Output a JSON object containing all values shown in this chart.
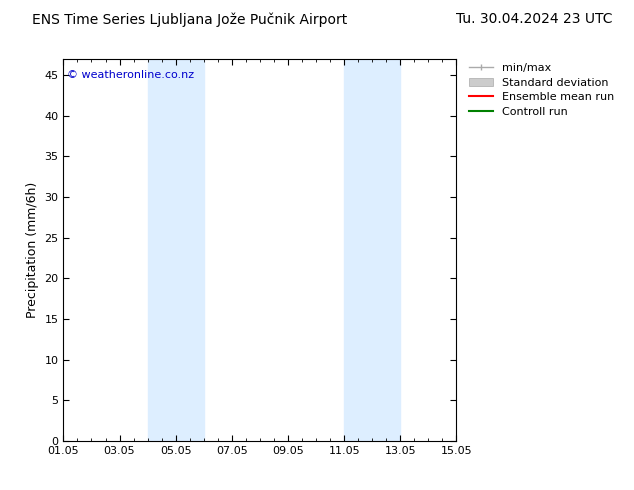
{
  "title_left": "ENS Time Series Ljubljana Jože Pučnik Airport",
  "title_right": "Tu. 30.04.2024 23 UTC",
  "xlabel": "",
  "ylabel": "Precipitation (mm/6h)",
  "watermark": "© weatheronline.co.nz",
  "xtick_labels": [
    "01.05",
    "03.05",
    "05.05",
    "07.05",
    "09.05",
    "11.05",
    "13.05",
    "15.05"
  ],
  "xtick_positions": [
    0,
    2,
    4,
    6,
    8,
    10,
    12,
    14
  ],
  "ylim": [
    0,
    47
  ],
  "ytick_positions": [
    0,
    5,
    10,
    15,
    20,
    25,
    30,
    35,
    40,
    45
  ],
  "ytick_labels": [
    "0",
    "5",
    "10",
    "15",
    "20",
    "25",
    "30",
    "35",
    "40",
    "45"
  ],
  "shaded_bands": [
    {
      "x_start": 3.0,
      "x_end": 4.0,
      "color": "#ddeeff"
    },
    {
      "x_start": 4.0,
      "x_end": 5.0,
      "color": "#ddeeff"
    },
    {
      "x_start": 10.0,
      "x_end": 11.0,
      "color": "#ddeeff"
    },
    {
      "x_start": 11.0,
      "x_end": 12.0,
      "color": "#ddeeff"
    }
  ],
  "legend_entries": [
    {
      "label": "min/max",
      "color": "#aaaaaa",
      "lw": 1.5
    },
    {
      "label": "Standard deviation",
      "color": "#cccccc",
      "lw": 8
    },
    {
      "label": "Ensemble mean run",
      "color": "#ff0000",
      "lw": 1.5
    },
    {
      "label": "Controll run",
      "color": "#008000",
      "lw": 1.5
    }
  ],
  "background_color": "#ffffff",
  "plot_bg_color": "#ffffff",
  "border_color": "#000000",
  "watermark_color": "#0000cc",
  "title_fontsize": 10,
  "axis_label_fontsize": 9,
  "tick_fontsize": 8,
  "legend_fontsize": 8
}
